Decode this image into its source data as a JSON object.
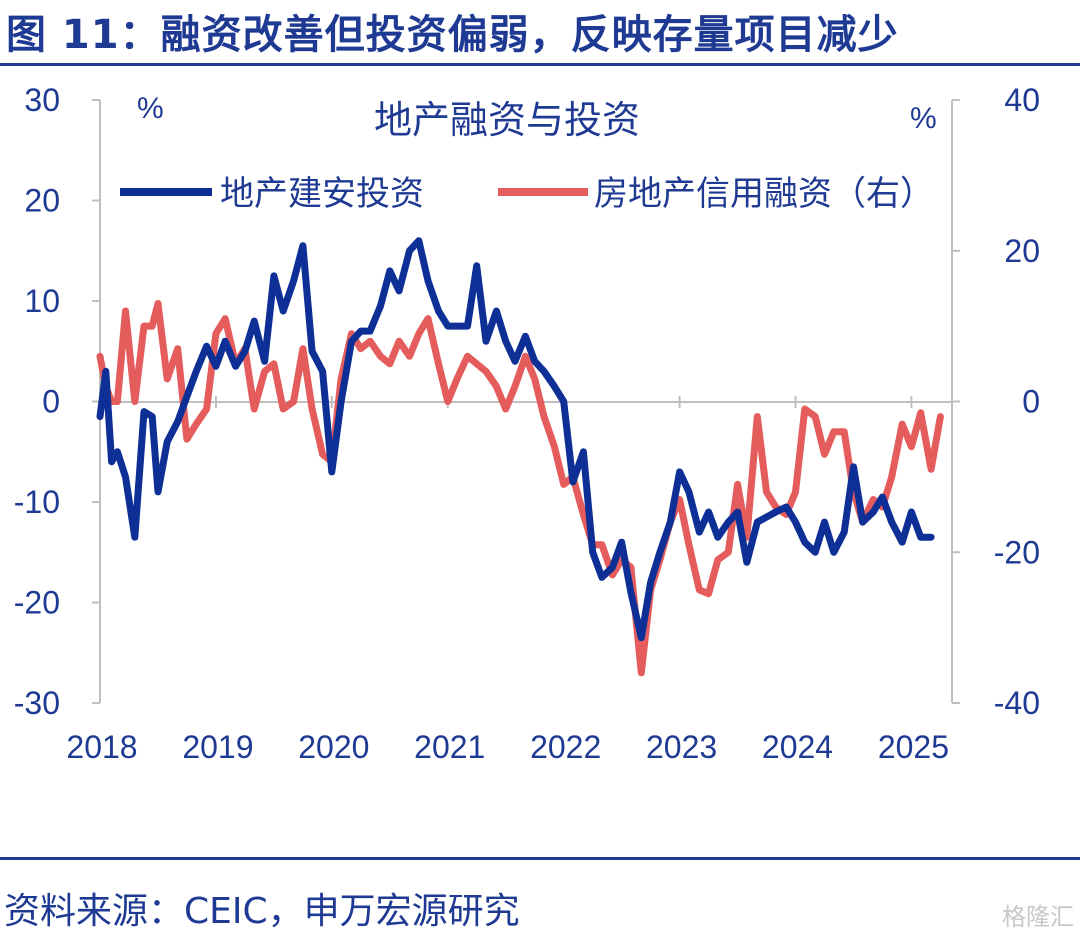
{
  "figure": {
    "title": "图 11：融资改善但投资偏弱，反映存量项目减少",
    "source": "资料来源：CEIC，申万宏源研究",
    "watermark": "格隆汇"
  },
  "chart_data": {
    "type": "line",
    "title": "地产融资与投资",
    "left_unit": "%",
    "right_unit": "%",
    "ylim_left": [
      -30,
      30
    ],
    "ylim_right": [
      -40,
      40
    ],
    "y_ticks_left": [
      "30",
      "20",
      "10",
      "0",
      "-10",
      "-20",
      "-30"
    ],
    "y_ticks_right": [
      "40",
      "20",
      "0",
      "-20",
      "-40"
    ],
    "x_ticks": [
      "2018",
      "2019",
      "2020",
      "2021",
      "2022",
      "2023",
      "2024",
      "2025"
    ],
    "legend_position": "top",
    "grid": false,
    "series": [
      {
        "name": "地产建安投资",
        "axis": "left",
        "color": "#0d2f96",
        "points": [
          [
            2018.0,
            -1.5
          ],
          [
            2018.05,
            3
          ],
          [
            2018.1,
            -6
          ],
          [
            2018.15,
            -5
          ],
          [
            2018.22,
            -7.5
          ],
          [
            2018.3,
            -13.5
          ],
          [
            2018.38,
            -1
          ],
          [
            2018.45,
            -1.5
          ],
          [
            2018.5,
            -9
          ],
          [
            2018.58,
            -4
          ],
          [
            2018.67,
            -2
          ],
          [
            2018.75,
            0.5
          ],
          [
            2018.83,
            3
          ],
          [
            2018.92,
            5.5
          ],
          [
            2019.0,
            3.5
          ],
          [
            2019.08,
            6
          ],
          [
            2019.17,
            3.5
          ],
          [
            2019.25,
            5
          ],
          [
            2019.33,
            8
          ],
          [
            2019.42,
            4
          ],
          [
            2019.5,
            12.5
          ],
          [
            2019.58,
            9
          ],
          [
            2019.67,
            12
          ],
          [
            2019.75,
            15.5
          ],
          [
            2019.83,
            5
          ],
          [
            2019.92,
            3
          ],
          [
            2020.0,
            -7
          ],
          [
            2020.08,
            0
          ],
          [
            2020.17,
            6
          ],
          [
            2020.25,
            7
          ],
          [
            2020.33,
            7
          ],
          [
            2020.42,
            9.5
          ],
          [
            2020.5,
            13
          ],
          [
            2020.58,
            11
          ],
          [
            2020.67,
            15
          ],
          [
            2020.75,
            16
          ],
          [
            2020.83,
            12
          ],
          [
            2020.92,
            9
          ],
          [
            2021.0,
            7.5
          ],
          [
            2021.08,
            7.5
          ],
          [
            2021.17,
            7.5
          ],
          [
            2021.25,
            13.5
          ],
          [
            2021.33,
            6
          ],
          [
            2021.42,
            9
          ],
          [
            2021.5,
            6
          ],
          [
            2021.58,
            4
          ],
          [
            2021.67,
            6.5
          ],
          [
            2021.75,
            4
          ],
          [
            2021.83,
            3
          ],
          [
            2021.92,
            1.5
          ],
          [
            2022.0,
            0
          ],
          [
            2022.08,
            -8
          ],
          [
            2022.17,
            -5
          ],
          [
            2022.25,
            -15
          ],
          [
            2022.33,
            -17.5
          ],
          [
            2022.42,
            -16.5
          ],
          [
            2022.5,
            -14
          ],
          [
            2022.58,
            -19
          ],
          [
            2022.67,
            -23.5
          ],
          [
            2022.75,
            -18
          ],
          [
            2022.83,
            -15
          ],
          [
            2022.92,
            -12
          ],
          [
            2023.0,
            -7
          ],
          [
            2023.08,
            -9
          ],
          [
            2023.17,
            -13
          ],
          [
            2023.25,
            -11
          ],
          [
            2023.33,
            -13.5
          ],
          [
            2023.42,
            -12
          ],
          [
            2023.5,
            -11
          ],
          [
            2023.58,
            -16
          ],
          [
            2023.67,
            -12
          ],
          [
            2023.75,
            -11.5
          ],
          [
            2023.83,
            -11
          ],
          [
            2023.92,
            -10.5
          ],
          [
            2024.0,
            -12
          ],
          [
            2024.08,
            -14
          ],
          [
            2024.17,
            -15
          ],
          [
            2024.25,
            -12
          ],
          [
            2024.33,
            -15
          ],
          [
            2024.42,
            -13
          ],
          [
            2024.5,
            -6.5
          ],
          [
            2024.58,
            -12
          ],
          [
            2024.67,
            -11
          ],
          [
            2024.75,
            -9.5
          ],
          [
            2024.83,
            -12
          ],
          [
            2024.92,
            -14
          ],
          [
            2025.0,
            -11
          ],
          [
            2025.08,
            -13.5
          ],
          [
            2025.17,
            -13.5
          ]
        ]
      },
      {
        "name": "房地产信用融资（右）",
        "axis": "right",
        "color": "#e55c5c",
        "points": [
          [
            2018.0,
            6
          ],
          [
            2018.05,
            2
          ],
          [
            2018.1,
            0
          ],
          [
            2018.15,
            0
          ],
          [
            2018.22,
            12
          ],
          [
            2018.3,
            0
          ],
          [
            2018.38,
            10
          ],
          [
            2018.45,
            10
          ],
          [
            2018.5,
            13
          ],
          [
            2018.58,
            3
          ],
          [
            2018.67,
            7
          ],
          [
            2018.75,
            -5
          ],
          [
            2018.83,
            -3
          ],
          [
            2018.92,
            -1
          ],
          [
            2019.0,
            9
          ],
          [
            2019.08,
            11
          ],
          [
            2019.17,
            5
          ],
          [
            2019.25,
            7
          ],
          [
            2019.33,
            -1
          ],
          [
            2019.42,
            4
          ],
          [
            2019.5,
            5
          ],
          [
            2019.58,
            -1
          ],
          [
            2019.67,
            0
          ],
          [
            2019.75,
            7
          ],
          [
            2019.83,
            -1
          ],
          [
            2019.92,
            -7
          ],
          [
            2020.0,
            -8
          ],
          [
            2020.08,
            3
          ],
          [
            2020.17,
            9
          ],
          [
            2020.25,
            7
          ],
          [
            2020.33,
            8
          ],
          [
            2020.42,
            6
          ],
          [
            2020.5,
            5
          ],
          [
            2020.58,
            8
          ],
          [
            2020.67,
            6
          ],
          [
            2020.75,
            9
          ],
          [
            2020.83,
            11
          ],
          [
            2020.92,
            5
          ],
          [
            2021.0,
            0
          ],
          [
            2021.08,
            3
          ],
          [
            2021.17,
            6
          ],
          [
            2021.25,
            5
          ],
          [
            2021.33,
            4
          ],
          [
            2021.42,
            2
          ],
          [
            2021.5,
            -1
          ],
          [
            2021.58,
            2
          ],
          [
            2021.67,
            6
          ],
          [
            2021.75,
            3
          ],
          [
            2021.83,
            -2
          ],
          [
            2021.92,
            -6
          ],
          [
            2022.0,
            -11
          ],
          [
            2022.08,
            -10
          ],
          [
            2022.17,
            -15
          ],
          [
            2022.25,
            -19
          ],
          [
            2022.33,
            -19
          ],
          [
            2022.42,
            -23
          ],
          [
            2022.5,
            -21
          ],
          [
            2022.58,
            -22
          ],
          [
            2022.67,
            -36
          ],
          [
            2022.75,
            -25
          ],
          [
            2022.83,
            -21
          ],
          [
            2022.92,
            -16
          ],
          [
            2023.0,
            -13
          ],
          [
            2023.08,
            -19
          ],
          [
            2023.17,
            -25
          ],
          [
            2023.25,
            -25.5
          ],
          [
            2023.33,
            -21
          ],
          [
            2023.42,
            -20
          ],
          [
            2023.5,
            -11
          ],
          [
            2023.58,
            -18
          ],
          [
            2023.67,
            -2
          ],
          [
            2023.75,
            -12
          ],
          [
            2023.83,
            -14
          ],
          [
            2023.92,
            -15
          ],
          [
            2024.0,
            -12
          ],
          [
            2024.08,
            -1
          ],
          [
            2024.17,
            -2
          ],
          [
            2024.25,
            -7
          ],
          [
            2024.33,
            -4
          ],
          [
            2024.42,
            -4
          ],
          [
            2024.5,
            -12
          ],
          [
            2024.58,
            -16
          ],
          [
            2024.67,
            -13
          ],
          [
            2024.75,
            -14
          ],
          [
            2024.83,
            -10
          ],
          [
            2024.92,
            -3
          ],
          [
            2025.0,
            -6
          ],
          [
            2025.08,
            -1.5
          ],
          [
            2025.17,
            -9
          ],
          [
            2025.25,
            -2
          ]
        ]
      }
    ]
  }
}
